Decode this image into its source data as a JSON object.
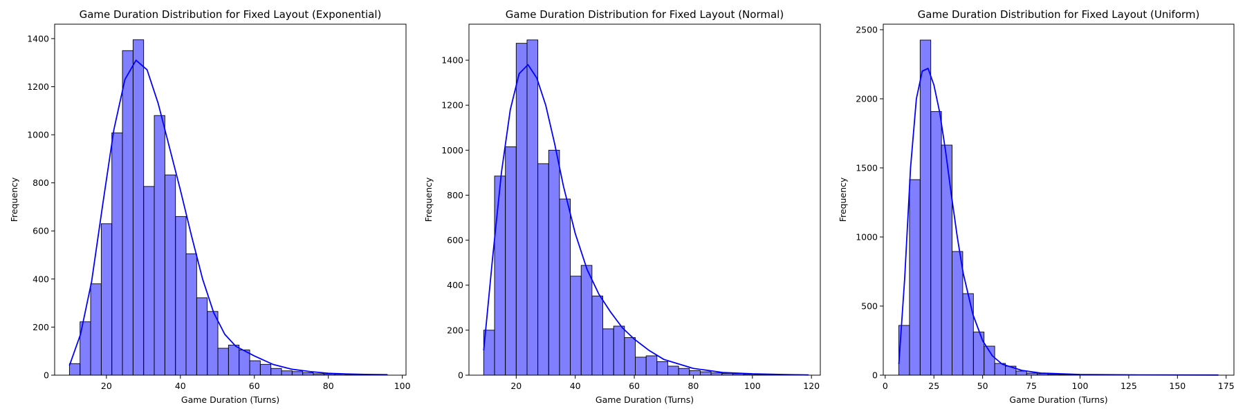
{
  "chart_data": [
    {
      "type": "bar",
      "title": "Game Duration Distribution for Fixed Layout (Exponential)",
      "xlabel": "Game Duration (Turns)",
      "ylabel": "Frequency",
      "xlim": [
        6,
        101
      ],
      "ylim": [
        0,
        1460
      ],
      "xticks": [
        20,
        40,
        60,
        80,
        100
      ],
      "yticks": [
        0,
        200,
        400,
        600,
        800,
        1000,
        1200,
        1400
      ],
      "bin_start": 10,
      "bin_width": 2.867,
      "values": [
        48,
        222,
        380,
        630,
        1008,
        1350,
        1395,
        785,
        1080,
        833,
        660,
        505,
        322,
        265,
        112,
        125,
        105,
        60,
        45,
        28,
        18,
        15,
        10,
        6,
        5,
        4,
        3,
        2,
        2,
        1
      ],
      "kde_x": [
        10,
        13,
        16,
        19,
        22,
        25,
        28,
        31,
        34,
        37,
        40,
        43,
        46,
        49,
        52,
        55,
        60,
        65,
        70,
        75,
        80,
        85,
        90,
        96
      ],
      "kde_y": [
        40,
        170,
        390,
        710,
        1020,
        1230,
        1310,
        1270,
        1130,
        950,
        770,
        580,
        400,
        260,
        170,
        120,
        80,
        45,
        25,
        15,
        8,
        5,
        3,
        2
      ]
    },
    {
      "type": "bar",
      "title": "Game Duration Distribution for Fixed Layout (Normal)",
      "xlabel": "Game Duration (Turns)",
      "ylabel": "Frequency",
      "xlim": [
        4,
        123
      ],
      "ylim": [
        0,
        1560
      ],
      "xticks": [
        20,
        40,
        60,
        80,
        100,
        120
      ],
      "yticks": [
        0,
        200,
        400,
        600,
        800,
        1000,
        1200,
        1400
      ],
      "bin_start": 9,
      "bin_width": 3.667,
      "values": [
        200,
        885,
        1015,
        1475,
        1490,
        940,
        1000,
        783,
        440,
        488,
        352,
        206,
        218,
        167,
        80,
        86,
        60,
        40,
        30,
        20,
        15,
        10,
        8,
        6,
        4,
        3,
        2,
        2,
        1,
        1
      ],
      "kde_x": [
        9,
        12,
        15,
        18,
        21,
        24,
        27,
        30,
        33,
        36,
        40,
        44,
        48,
        52,
        56,
        60,
        65,
        70,
        80,
        90,
        100,
        110,
        119
      ],
      "kde_y": [
        110,
        520,
        900,
        1180,
        1340,
        1380,
        1320,
        1200,
        1030,
        840,
        630,
        470,
        360,
        280,
        210,
        160,
        110,
        70,
        30,
        12,
        6,
        3,
        1
      ]
    },
    {
      "type": "bar",
      "title": "Game Duration Distribution for Fixed Layout (Uniform)",
      "xlabel": "Game Duration (Turns)",
      "ylabel": "Frequency",
      "xlim": [
        -1,
        179
      ],
      "ylim": [
        0,
        2540
      ],
      "xticks": [
        0,
        25,
        50,
        75,
        100,
        125,
        150,
        175
      ],
      "yticks": [
        0,
        500,
        1000,
        1500,
        2000,
        2500
      ],
      "bin_start": 7,
      "bin_width": 5.467,
      "values": [
        360,
        1415,
        2425,
        1908,
        1665,
        895,
        590,
        312,
        210,
        85,
        65,
        30,
        15,
        10,
        6,
        4,
        3,
        2,
        2,
        1,
        1,
        1,
        1,
        0,
        0,
        0,
        0,
        0,
        0,
        1
      ],
      "kde_x": [
        7,
        10,
        13,
        16,
        19,
        22,
        25,
        28,
        31,
        34,
        37,
        40,
        45,
        50,
        55,
        60,
        70,
        80,
        100,
        130,
        171
      ],
      "kde_y": [
        80,
        700,
        1500,
        2000,
        2200,
        2220,
        2100,
        1900,
        1620,
        1300,
        1000,
        740,
        440,
        250,
        140,
        80,
        35,
        15,
        5,
        2,
        1
      ]
    }
  ]
}
